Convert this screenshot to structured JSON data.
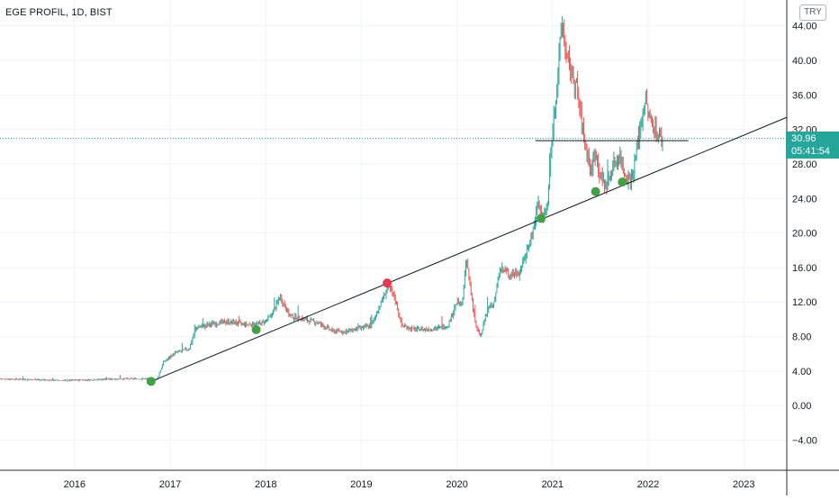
{
  "title": "EGE PROFIL, 1D, BIST",
  "currency": "TRY",
  "colors": {
    "up": "#26a69a",
    "down": "#ef5350",
    "trendline": "#131722",
    "marker_green": "#43a047",
    "marker_red": "#e53950",
    "last_price_line": "#26a69a",
    "grid": "#f0f3fa",
    "axis_text": "#131722"
  },
  "price_tag": {
    "value": "30.96",
    "countdown": "05:41:54"
  },
  "chart_data": {
    "type": "candlestick",
    "x_axis": {
      "ticks": [
        "2016",
        "2017",
        "2018",
        "2019",
        "2020",
        "2021",
        "2022",
        "2023"
      ],
      "range": [
        2015.22,
        2023.45
      ]
    },
    "y_axis": {
      "ticks": [
        "44.00",
        "40.00",
        "36.00",
        "32.00",
        "28.00",
        "24.00",
        "20.00",
        "16.00",
        "12.00",
        "8.00",
        "4.00",
        "0.00",
        "−4.00"
      ],
      "range": [
        -7.5,
        47.0
      ]
    },
    "grid": true,
    "last_price": 30.96,
    "price_path": [
      [
        2015.22,
        3.1
      ],
      [
        2015.6,
        3.0
      ],
      [
        2015.9,
        2.9
      ],
      [
        2016.2,
        3.0
      ],
      [
        2016.5,
        3.1
      ],
      [
        2016.75,
        3.1
      ],
      [
        2016.86,
        3.0
      ],
      [
        2016.93,
        5.0
      ],
      [
        2017.05,
        6.1
      ],
      [
        2017.2,
        6.6
      ],
      [
        2017.27,
        9.0
      ],
      [
        2017.45,
        9.5
      ],
      [
        2017.6,
        9.7
      ],
      [
        2017.8,
        9.4
      ],
      [
        2017.95,
        9.5
      ],
      [
        2018.05,
        10.3
      ],
      [
        2018.15,
        12.6
      ],
      [
        2018.25,
        10.4
      ],
      [
        2018.4,
        10.0
      ],
      [
        2018.55,
        9.6
      ],
      [
        2018.7,
        8.6
      ],
      [
        2018.85,
        8.6
      ],
      [
        2019.0,
        9.0
      ],
      [
        2019.1,
        9.2
      ],
      [
        2019.2,
        11.8
      ],
      [
        2019.28,
        13.8
      ],
      [
        2019.35,
        12.5
      ],
      [
        2019.42,
        9.3
      ],
      [
        2019.55,
        8.8
      ],
      [
        2019.75,
        8.9
      ],
      [
        2019.9,
        9.2
      ],
      [
        2020.0,
        12.0
      ],
      [
        2020.05,
        11.5
      ],
      [
        2020.1,
        16.9
      ],
      [
        2020.15,
        12.8
      ],
      [
        2020.2,
        9.0
      ],
      [
        2020.25,
        8.0
      ],
      [
        2020.3,
        10.5
      ],
      [
        2020.4,
        12.5
      ],
      [
        2020.45,
        16.0
      ],
      [
        2020.55,
        15.2
      ],
      [
        2020.65,
        15.4
      ],
      [
        2020.72,
        17.5
      ],
      [
        2020.8,
        20.5
      ],
      [
        2020.85,
        23.5
      ],
      [
        2020.9,
        21.5
      ],
      [
        2020.95,
        23.5
      ],
      [
        2021.0,
        32.0
      ],
      [
        2021.05,
        38.0
      ],
      [
        2021.1,
        44.5
      ],
      [
        2021.15,
        40.0
      ],
      [
        2021.25,
        37.0
      ],
      [
        2021.3,
        33.0
      ],
      [
        2021.35,
        30.0
      ],
      [
        2021.4,
        27.0
      ],
      [
        2021.45,
        29.5
      ],
      [
        2021.5,
        26.5
      ],
      [
        2021.57,
        25.3
      ],
      [
        2021.62,
        27.5
      ],
      [
        2021.7,
        29.0
      ],
      [
        2021.77,
        26.5
      ],
      [
        2021.83,
        26.3
      ],
      [
        2021.9,
        31.0
      ],
      [
        2021.97,
        35.5
      ],
      [
        2022.02,
        33.0
      ],
      [
        2022.07,
        32.2
      ],
      [
        2022.12,
        31.0
      ],
      [
        2022.15,
        30.96
      ]
    ],
    "annotations": {
      "trendline": [
        [
          2016.78,
          2.7
        ],
        [
          2023.45,
          33.4
        ]
      ],
      "horizontal_line": {
        "from": 2020.82,
        "to": 2022.42,
        "y": 30.7
      },
      "markers": [
        {
          "x": 2016.8,
          "y": 2.8,
          "color": "green"
        },
        {
          "x": 2017.9,
          "y": 8.8,
          "color": "green"
        },
        {
          "x": 2019.27,
          "y": 14.2,
          "color": "red"
        },
        {
          "x": 2020.88,
          "y": 21.7,
          "color": "green"
        },
        {
          "x": 2021.45,
          "y": 24.8,
          "color": "green"
        },
        {
          "x": 2021.73,
          "y": 25.9,
          "color": "green"
        }
      ]
    }
  }
}
